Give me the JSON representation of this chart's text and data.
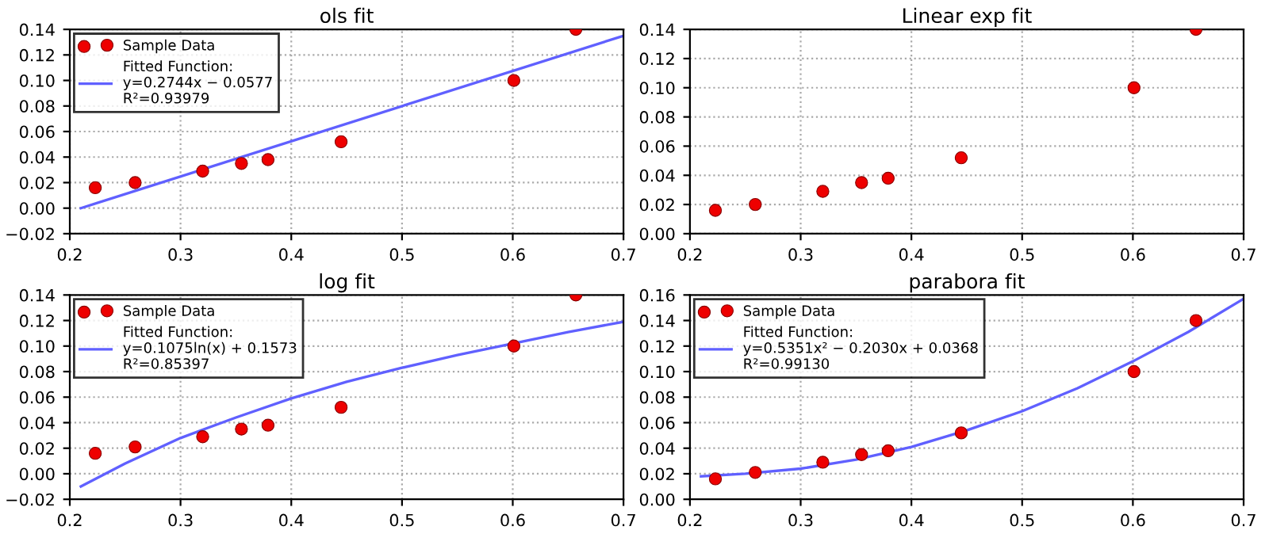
{
  "chart_data": [
    {
      "type": "scatter",
      "title": "ols fit",
      "xlim": [
        0.2,
        0.7
      ],
      "xticks": [
        0.2,
        0.3,
        0.4,
        0.5,
        0.6,
        0.7
      ],
      "ylim": [
        -0.02,
        0.14
      ],
      "yticks": [
        {
          "value": -0.02,
          "label": "−0.02"
        },
        {
          "value": 0,
          "label": "0.00"
        },
        {
          "value": 0.02,
          "label": "0.02"
        },
        {
          "value": 0.04,
          "label": "0.04"
        },
        {
          "value": 0.06,
          "label": "0.06"
        },
        {
          "value": 0.08,
          "label": "0.08"
        },
        {
          "value": 0.1,
          "label": "0.10"
        },
        {
          "value": 0.12,
          "label": "0.12"
        },
        {
          "value": 0.14,
          "label": "0.14"
        }
      ],
      "grid": true,
      "legend": "top left",
      "series": [
        {
          "name": "Sample Data",
          "color": "#ee0000",
          "marker": "circle",
          "x": [
            0.223,
            0.259,
            0.32,
            0.355,
            0.379,
            0.445,
            0.601,
            0.657
          ],
          "values": [
            0.016,
            0.02,
            0.029,
            0.035,
            0.038,
            0.052,
            0.1,
            0.14
          ]
        },
        {
          "type": "line",
          "name": "Fitted Function:\ny=0.2744x − 0.0577\nR²=0.93979",
          "color": "#6060ff",
          "line_style": "solid",
          "marker": "none",
          "x": [
            0.21,
            0.7
          ],
          "values": [
            0.0,
            0.135
          ]
        }
      ]
    },
    {
      "type": "scatter",
      "title": "Linear exp fit",
      "xlim": [
        0.2,
        0.7
      ],
      "xticks": [
        0.2,
        0.3,
        0.4,
        0.5,
        0.6,
        0.7
      ],
      "ylim": [
        0,
        0.14
      ],
      "yticks": [
        {
          "value": 0,
          "label": "0.00"
        },
        {
          "value": 0.02,
          "label": "0.02"
        },
        {
          "value": 0.04,
          "label": "0.04"
        },
        {
          "value": 0.06,
          "label": "0.06"
        },
        {
          "value": 0.08,
          "label": "0.08"
        },
        {
          "value": 0.1,
          "label": "0.10"
        },
        {
          "value": 0.12,
          "label": "0.12"
        },
        {
          "value": 0.14,
          "label": "0.14"
        }
      ],
      "grid": true,
      "series": [
        {
          "color": "#ee0000",
          "marker": "circle",
          "x": [
            0.223,
            0.259,
            0.32,
            0.355,
            0.379,
            0.445,
            0.601,
            0.657
          ],
          "values": [
            0.016,
            0.02,
            0.029,
            0.035,
            0.038,
            0.052,
            0.1,
            0.14
          ]
        }
      ]
    },
    {
      "type": "scatter",
      "title": "log fit",
      "xlim": [
        0.2,
        0.7
      ],
      "xticks": [
        0.2,
        0.3,
        0.4,
        0.5,
        0.6,
        0.7
      ],
      "ylim": [
        -0.02,
        0.14
      ],
      "yticks": [
        {
          "value": -0.02,
          "label": "−0.02"
        },
        {
          "value": 0,
          "label": "0.00"
        },
        {
          "value": 0.02,
          "label": "0.02"
        },
        {
          "value": 0.04,
          "label": "0.04"
        },
        {
          "value": 0.06,
          "label": "0.06"
        },
        {
          "value": 0.08,
          "label": "0.08"
        },
        {
          "value": 0.1,
          "label": "0.10"
        },
        {
          "value": 0.12,
          "label": "0.12"
        },
        {
          "value": 0.14,
          "label": "0.14"
        }
      ],
      "grid": true,
      "legend": "top left",
      "series": [
        {
          "name": "Sample Data",
          "color": "#ee0000",
          "marker": "circle",
          "x": [
            0.223,
            0.259,
            0.32,
            0.355,
            0.379,
            0.445,
            0.601,
            0.657
          ],
          "values": [
            0.016,
            0.021,
            0.029,
            0.035,
            0.038,
            0.052,
            0.1,
            0.14
          ]
        },
        {
          "type": "line",
          "name": "Fitted Function:\ny=0.1075ln(x) + 0.1573\nR²=0.85397",
          "color": "#6060ff",
          "line_style": "solid",
          "marker": "none",
          "x": [
            0.21,
            0.25,
            0.3,
            0.35,
            0.4,
            0.45,
            0.5,
            0.55,
            0.6,
            0.65,
            0.7
          ],
          "values": [
            -0.01,
            0.008,
            0.028,
            0.044,
            0.059,
            0.072,
            0.083,
            0.093,
            0.102,
            0.111,
            0.119
          ]
        }
      ]
    },
    {
      "type": "scatter",
      "title": "parabora fit",
      "xlim": [
        0.2,
        0.7
      ],
      "xticks": [
        0.2,
        0.3,
        0.4,
        0.5,
        0.6,
        0.7
      ],
      "ylim": [
        0,
        0.16
      ],
      "yticks": [
        {
          "value": 0,
          "label": "0.00"
        },
        {
          "value": 0.02,
          "label": "0.02"
        },
        {
          "value": 0.04,
          "label": "0.04"
        },
        {
          "value": 0.06,
          "label": "0.06"
        },
        {
          "value": 0.08,
          "label": "0.08"
        },
        {
          "value": 0.1,
          "label": "0.10"
        },
        {
          "value": 0.12,
          "label": "0.12"
        },
        {
          "value": 0.14,
          "label": "0.14"
        },
        {
          "value": 0.16,
          "label": "0.16"
        }
      ],
      "grid": true,
      "legend": "top left",
      "series": [
        {
          "name": "Sample Data",
          "color": "#ee0000",
          "marker": "circle",
          "x": [
            0.223,
            0.259,
            0.32,
            0.355,
            0.379,
            0.445,
            0.601,
            0.657
          ],
          "values": [
            0.016,
            0.021,
            0.029,
            0.035,
            0.038,
            0.052,
            0.1,
            0.14
          ]
        },
        {
          "type": "line",
          "name": "Fitted Function:\ny=0.5351x² − 0.2030x + 0.0368\nR²=0.99130",
          "color": "#6060ff",
          "line_style": "solid",
          "marker": "none",
          "x": [
            0.21,
            0.25,
            0.3,
            0.35,
            0.4,
            0.45,
            0.5,
            0.55,
            0.6,
            0.65,
            0.7
          ],
          "values": [
            0.018,
            0.02,
            0.024,
            0.031,
            0.041,
            0.054,
            0.069,
            0.087,
            0.108,
            0.131,
            0.157
          ]
        }
      ]
    }
  ]
}
